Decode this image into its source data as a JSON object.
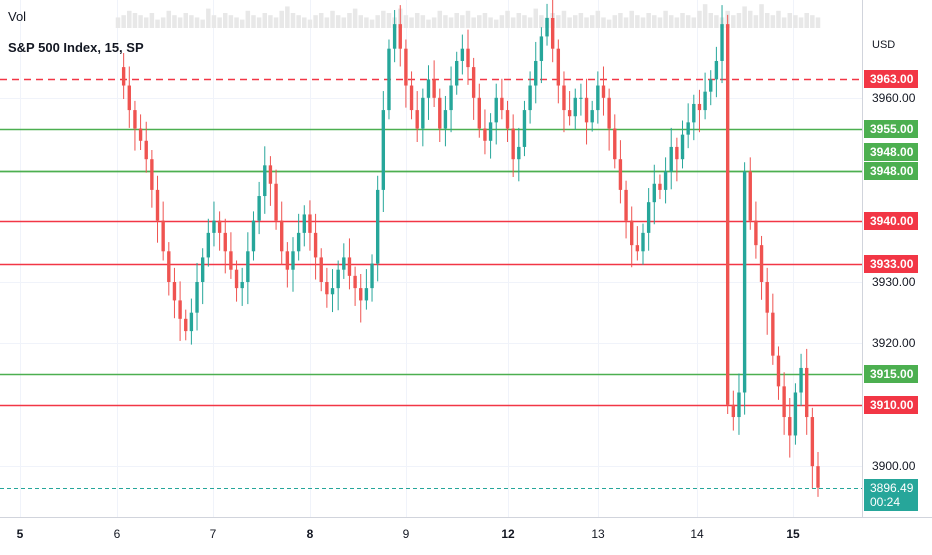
{
  "legend": {
    "vol_label": "Vol",
    "series_title": "S&P 500 Index, 15, SP"
  },
  "price_axis": {
    "currency": "USD",
    "ticks": [
      "3960.00",
      "3930.00",
      "3920.00",
      "3900.00"
    ]
  },
  "countdown": "00:24",
  "colors": {
    "up": "#26a69a",
    "down": "#ef5350",
    "support": "#4caf50",
    "resistance": "#f23645",
    "volume": "#e8e8e8"
  },
  "chart_data": {
    "type": "line",
    "title": "S&P 500 Index, 15, SP",
    "ylim": [
      3894.0,
      3973.0
    ],
    "x_tick_labels": [
      "5",
      "6",
      "7",
      "8",
      "9",
      "12",
      "13",
      "14",
      "15"
    ],
    "close_series": {
      "x": [
        0,
        2,
        4,
        6,
        8,
        10,
        12,
        14,
        16,
        18,
        20,
        22,
        24,
        26,
        28,
        30,
        32,
        34,
        36,
        38,
        40,
        42,
        44,
        46,
        48,
        50,
        52,
        54,
        56,
        58,
        60,
        62,
        64,
        66,
        68,
        70,
        72,
        74,
        76,
        78,
        80,
        82,
        84,
        86,
        88,
        90,
        92,
        94,
        96,
        98,
        100,
        102,
        104,
        106,
        108,
        110,
        112,
        114,
        116,
        118,
        120,
        122,
        124,
        126,
        128,
        130,
        132,
        134,
        136,
        138,
        140,
        142,
        144,
        146,
        148,
        150,
        152,
        154,
        156,
        158,
        160,
        162,
        164,
        166,
        168,
        170,
        172,
        174,
        176,
        178,
        180,
        182,
        184,
        186,
        188,
        190,
        192,
        194,
        196,
        198,
        200,
        202,
        204,
        206,
        208,
        210,
        212,
        214,
        216,
        218,
        220,
        222,
        224,
        226,
        228,
        230,
        232,
        234,
        236,
        238,
        240,
        242,
        244,
        246,
        248
      ],
      "values": [
        3965,
        3962,
        3958,
        3955,
        3953,
        3950,
        3945,
        3940,
        3935,
        3930,
        3927,
        3924,
        3922,
        3925,
        3930,
        3934,
        3938,
        3940,
        3938,
        3935,
        3932,
        3929,
        3930,
        3935,
        3940,
        3944,
        3949,
        3946,
        3940,
        3935,
        3932,
        3935,
        3938,
        3941,
        3938,
        3934,
        3930,
        3928,
        3929,
        3932,
        3934,
        3931,
        3929,
        3927,
        3929,
        3933,
        3945,
        3958,
        3968,
        3972,
        3968,
        3962,
        3958,
        3955,
        3960,
        3963,
        3960,
        3955,
        3958,
        3962,
        3966,
        3968,
        3965,
        3960,
        3955,
        3953,
        3956,
        3960,
        3958,
        3955,
        3950,
        3952,
        3958,
        3962,
        3966,
        3970,
        3973,
        3968,
        3962,
        3958,
        3957,
        3960,
        3960,
        3956,
        3958,
        3962,
        3960,
        3955,
        3950,
        3945,
        3940,
        3936,
        3935,
        3938,
        3943,
        3946,
        3945,
        3948,
        3952,
        3950,
        3954,
        3956,
        3959,
        3958,
        3961,
        3963,
        3966,
        3972,
        3910,
        3908,
        3912,
        3948,
        3940,
        3936,
        3930,
        3925,
        3918,
        3913,
        3908,
        3905,
        3912,
        3916,
        3908,
        3900,
        3896.49
      ]
    },
    "volume_series": [
      0.3,
      0.4,
      0.6,
      0.5,
      0.4,
      0.3,
      0.5,
      0.2,
      0.3,
      0.6,
      0.4,
      0.3,
      0.5,
      0.4,
      0.3,
      0.2,
      0.7,
      0.4,
      0.3,
      0.5,
      0.4,
      0.3,
      0.2,
      0.6,
      0.4,
      0.3,
      0.5,
      0.4,
      0.3,
      0.6,
      0.8,
      0.5,
      0.4,
      0.3,
      0.2,
      0.4,
      0.5,
      0.3,
      0.6,
      0.4,
      0.3,
      0.5,
      0.7,
      0.4,
      0.3,
      0.2,
      0.4,
      0.6,
      0.5,
      0.3,
      0.7,
      0.4,
      0.3,
      0.5,
      0.4,
      0.2,
      0.3,
      0.6,
      0.4,
      0.3,
      0.5,
      0.4,
      0.6,
      0.3,
      0.4,
      0.5,
      0.3,
      0.2,
      0.4,
      0.6,
      0.3,
      0.5,
      0.4,
      0.3,
      0.7,
      0.4,
      0.3,
      0.5,
      0.4,
      0.6,
      0.3,
      0.4,
      0.5,
      0.3,
      0.4,
      0.6,
      0.3,
      0.2,
      0.4,
      0.5,
      0.3,
      0.6,
      0.4,
      0.3,
      0.5,
      0.4,
      0.3,
      0.6,
      0.4,
      0.3,
      0.5,
      0.4,
      0.3,
      0.6,
      0.9,
      0.5,
      0.4,
      0.3,
      0.6,
      0.4,
      0.5,
      0.8,
      0.6,
      0.4,
      0.9,
      0.5,
      0.4,
      0.6,
      0.3,
      0.5,
      0.4,
      0.3,
      0.5,
      0.4,
      0.3
    ],
    "levels": [
      {
        "value": 3963.0,
        "label": "3963.00",
        "kind": "resistance",
        "style": "dashed"
      },
      {
        "value": 3955.0,
        "label": "3955.00",
        "kind": "support",
        "style": "solid"
      },
      {
        "value": 3948.0,
        "label": "3948.00",
        "kind": "support",
        "style": "solid"
      },
      {
        "value": 3948.0,
        "label": "3948.00",
        "kind": "support",
        "style": "solid"
      },
      {
        "value": 3940.0,
        "label": "3940.00",
        "kind": "resistance",
        "style": "solid"
      },
      {
        "value": 3933.0,
        "label": "3933.00",
        "kind": "resistance",
        "style": "solid"
      },
      {
        "value": 3915.0,
        "label": "3915.00",
        "kind": "support",
        "style": "solid"
      },
      {
        "value": 3910.0,
        "label": "3910.00",
        "kind": "resistance",
        "style": "solid"
      },
      {
        "value": 3896.49,
        "label": "3896.49",
        "kind": "last-price",
        "style": "dashed"
      }
    ],
    "y_ticks": [
      3960,
      3930,
      3920,
      3900
    ],
    "grid": true
  }
}
